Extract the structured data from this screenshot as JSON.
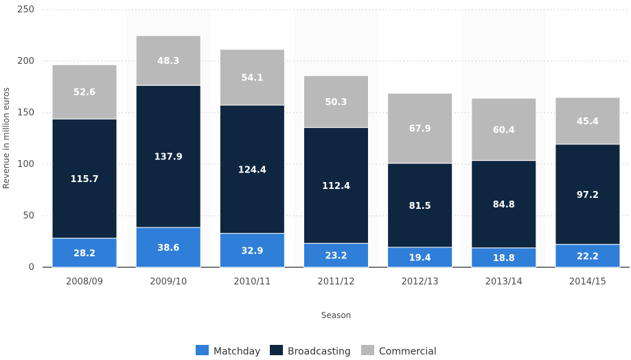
{
  "chart_data": {
    "type": "bar",
    "stacked": true,
    "title": "",
    "xlabel": "Season",
    "ylabel": "Revenue in million euros",
    "ylim": [
      0,
      250
    ],
    "yticks": [
      0,
      50,
      100,
      150,
      200,
      250
    ],
    "grid": true,
    "legend_position": "bottom",
    "categories": [
      "2008/09",
      "2009/10",
      "2010/11",
      "2011/12",
      "2012/13",
      "2013/14",
      "2014/15"
    ],
    "series": [
      {
        "name": "Matchday",
        "color": "#2f7ed8",
        "values": [
          28.2,
          38.6,
          32.9,
          23.2,
          19.4,
          18.8,
          22.2
        ]
      },
      {
        "name": "Broadcasting",
        "color": "#0f2640",
        "values": [
          115.7,
          137.9,
          124.4,
          112.4,
          81.5,
          84.8,
          97.2
        ]
      },
      {
        "name": "Commercial",
        "color": "#b9b9b9",
        "values": [
          52.6,
          48.3,
          54.1,
          50.3,
          67.9,
          60.4,
          45.4
        ]
      }
    ]
  }
}
